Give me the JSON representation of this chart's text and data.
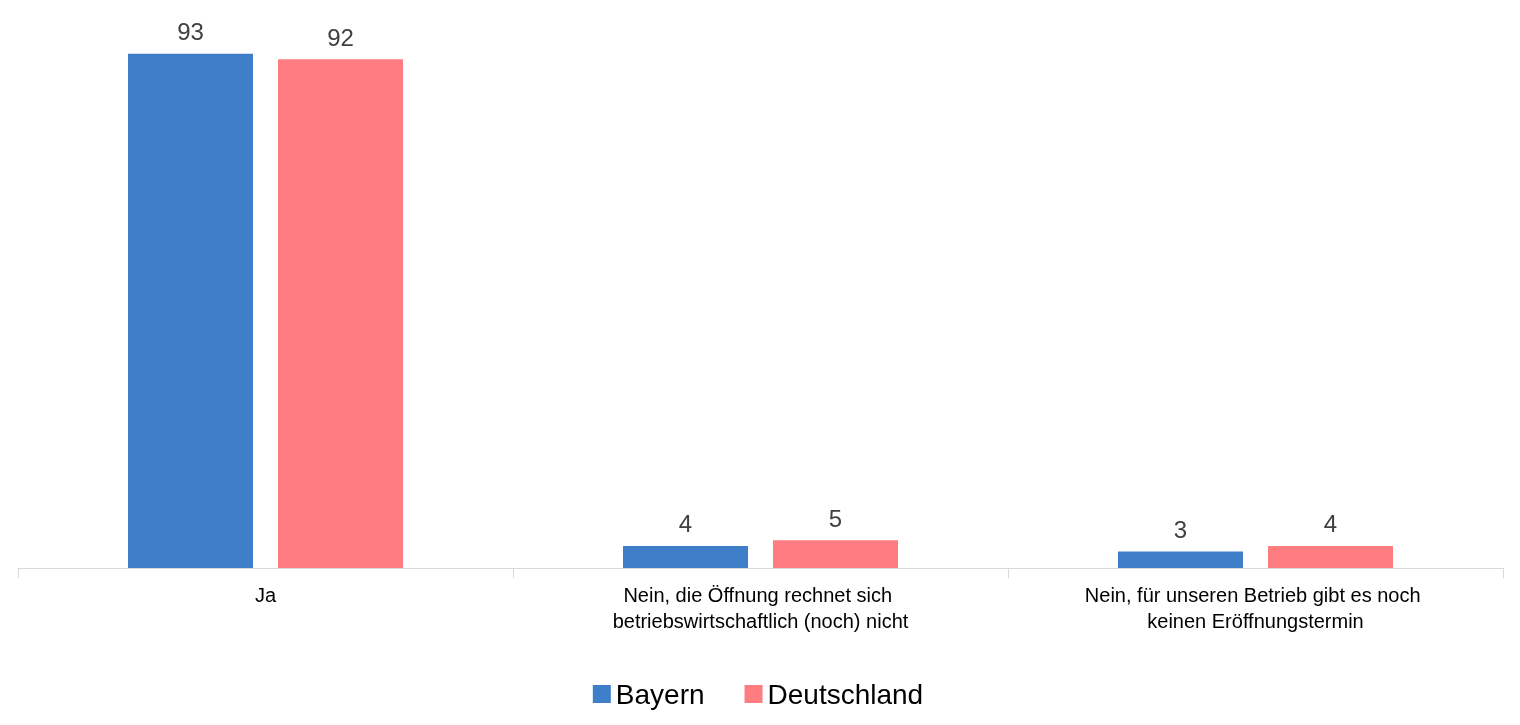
{
  "chart_data": {
    "type": "bar",
    "categories": [
      "Ja",
      "Nein, die Öffnung rechnet sich betriebswirtschaftlich (noch) nicht",
      "Nein, für unseren Betrieb gibt es noch keinen Eröffnungstermin"
    ],
    "series": [
      {
        "name": "Bayern",
        "color": "#3f7ec9",
        "values": [
          93,
          4,
          3
        ]
      },
      {
        "name": "Deutschland",
        "color": "#ff7c80",
        "values": [
          92,
          5,
          4
        ]
      }
    ],
    "data_labels": true,
    "tick_labels": "x",
    "legend": "bottom"
  }
}
